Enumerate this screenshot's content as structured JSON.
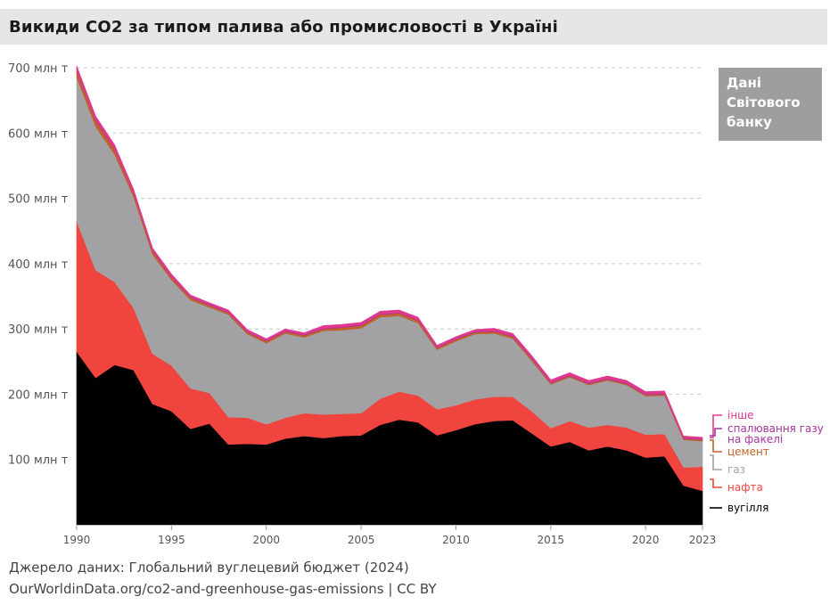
{
  "title": "Викиди CO2 за типом палива або промисловості в Україні",
  "badge": {
    "line1": "Дані",
    "line2": "Світового",
    "line3": "банку"
  },
  "source": "Джерело даних: Глобальний вуглецевий бюджет (2024)",
  "link": "OurWorldinData.org/co2-and-greenhouse-gas-emissions | CC BY",
  "colors": {
    "coal": "#000000",
    "oil": "#f0453f",
    "gas": "#a2a2a4",
    "cement": "#c0622b",
    "flaring": "#a7339e",
    "other": "#e0388f",
    "background": "#ffffff"
  },
  "chart_data": {
    "type": "area",
    "stacked": true,
    "title": "Викиди CO2 за типом палива або промисловості в Україні",
    "xlabel": "",
    "ylabel": "",
    "xlim": [
      1990,
      2023
    ],
    "ylim": [
      0,
      700
    ],
    "y_ticks": [
      100,
      200,
      300,
      400,
      500,
      600,
      700
    ],
    "y_tick_labels": [
      "100 млн т",
      "200 млн т",
      "300 млн т",
      "400 млн т",
      "500 млн т",
      "600 млн т",
      "700 млн т"
    ],
    "x_ticks": [
      1990,
      1995,
      2000,
      2005,
      2010,
      2015,
      2020,
      2023
    ],
    "x_tick_labels": [
      "1990",
      "1995",
      "2000",
      "2005",
      "2010",
      "2015",
      "2020",
      "2023"
    ],
    "grid": "horizontal dashed",
    "x": [
      1990,
      1991,
      1992,
      1993,
      1994,
      1995,
      1996,
      1997,
      1998,
      1999,
      2000,
      2001,
      2002,
      2003,
      2004,
      2005,
      2006,
      2007,
      2008,
      2009,
      2010,
      2011,
      2012,
      2013,
      2014,
      2015,
      2016,
      2017,
      2018,
      2019,
      2020,
      2021,
      2022,
      2023
    ],
    "series": [
      {
        "name": "вугілля",
        "values": [
          265,
          225,
          245,
          237,
          185,
          174,
          147,
          155,
          123,
          124,
          123,
          132,
          136,
          133,
          136,
          137,
          153,
          161,
          157,
          137,
          145,
          154,
          159,
          160,
          140,
          120,
          127,
          114,
          120,
          114,
          103,
          105,
          60,
          52
        ]
      },
      {
        "name": "нафта",
        "values": [
          200,
          165,
          127,
          95,
          77,
          70,
          62,
          47,
          42,
          40,
          31,
          32,
          35,
          36,
          34,
          34,
          40,
          43,
          41,
          40,
          38,
          38,
          37,
          36,
          34,
          28,
          32,
          35,
          33,
          35,
          35,
          34,
          28,
          37
        ]
      },
      {
        "name": "газ",
        "values": [
          220,
          220,
          195,
          170,
          152,
          131,
          135,
          131,
          157,
          128,
          124,
          129,
          116,
          128,
          128,
          130,
          125,
          116,
          111,
          91,
          98,
          100,
          97,
          89,
          77,
          67,
          67,
          65,
          68,
          65,
          59,
          59,
          42,
          39
        ]
      },
      {
        "name": "цемент",
        "values": [
          10,
          9,
          8,
          6,
          5,
          4,
          4,
          3,
          3,
          3,
          3,
          3,
          3,
          3,
          4,
          4,
          4,
          4,
          4,
          3,
          3,
          3,
          3,
          3,
          3,
          2,
          2,
          2,
          2,
          2,
          2,
          2,
          2,
          2
        ]
      },
      {
        "name": "спалювання газу на факелі",
        "values": [
          1,
          1,
          1,
          1,
          1,
          1,
          1,
          1,
          1,
          1,
          1,
          1,
          1,
          1,
          1,
          1,
          1,
          1,
          1,
          1,
          1,
          1,
          1,
          1,
          1,
          1,
          1,
          1,
          1,
          1,
          1,
          1,
          1,
          1
        ]
      },
      {
        "name": "інше",
        "values": [
          7,
          6,
          6,
          5,
          4,
          4,
          3,
          3,
          3,
          3,
          3,
          3,
          3,
          4,
          4,
          4,
          4,
          4,
          4,
          3,
          3,
          3,
          4,
          4,
          4,
          4,
          4,
          4,
          4,
          4,
          4,
          4,
          3,
          3
        ]
      }
    ],
    "legend": "right, inline labels",
    "legend_labels": {
      "other": "інше",
      "flaring": "спалювання газу на факелі",
      "cement": "цемент",
      "gas": "газ",
      "oil": "нафта",
      "coal": "вугілля"
    }
  }
}
